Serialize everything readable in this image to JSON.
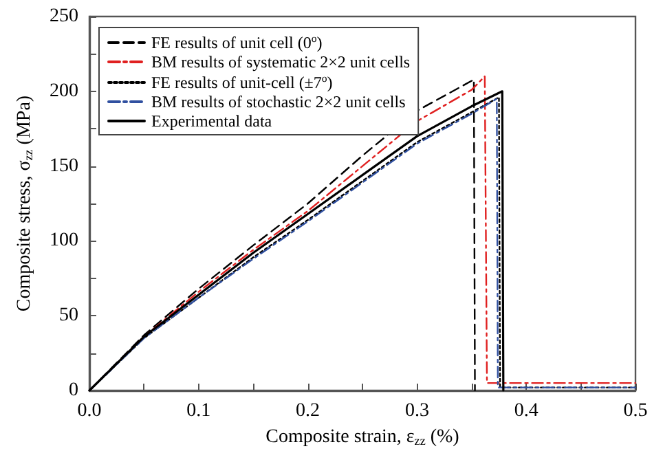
{
  "chart_data": {
    "type": "line",
    "xlabel": "Composite strain, ε$_{zz}$ (%)",
    "ylabel": "Composite stress, σ$_{zz}$ (MPa)",
    "xlim": [
      0,
      0.5
    ],
    "xticks": [
      {
        "value": 0,
        "label": "0.0"
      },
      0.1,
      0.2,
      0.3,
      0.4,
      0.5
    ],
    "ylim": [
      0,
      250
    ],
    "yticks": [
      0,
      50,
      100,
      150,
      200,
      250
    ],
    "grid": false,
    "legend": "top left",
    "marker": "none",
    "series": [
      {
        "name": "FE results of unit cell (0$^{o}$)",
        "color": "#000000",
        "line_style": "dashed",
        "x": [
          0,
          0.05,
          0.1,
          0.15,
          0.2,
          0.25,
          0.3,
          0.35,
          0.352,
          0.353
        ],
        "values": [
          0,
          37,
          68,
          97,
          125,
          157,
          187,
          207,
          208,
          0
        ]
      },
      {
        "name": "BM results of systematic 2×2 unit cells",
        "color": "#e02020",
        "line_style": "dashdot",
        "x": [
          0,
          0.05,
          0.1,
          0.15,
          0.2,
          0.25,
          0.3,
          0.35,
          0.362,
          0.364,
          0.5
        ],
        "values": [
          0,
          36,
          66,
          94,
          120,
          150,
          180,
          201,
          210,
          5,
          5
        ]
      },
      {
        "name": "FE results of unit-cell (±7$^{o}$)",
        "color": "#000000",
        "line_style": "dotted",
        "x": [
          0,
          0.05,
          0.1,
          0.15,
          0.2,
          0.25,
          0.3,
          0.35,
          0.375,
          0.376,
          0.5
        ],
        "values": [
          0,
          35,
          62,
          89,
          114,
          140,
          166,
          186,
          196,
          2,
          2
        ]
      },
      {
        "name": "BM results of stochastic 2×2 unit cells",
        "color": "#3050a0",
        "line_style": "dashdot",
        "x": [
          0,
          0.05,
          0.1,
          0.15,
          0.2,
          0.25,
          0.3,
          0.35,
          0.373,
          0.374,
          0.5
        ],
        "values": [
          0,
          35,
          62,
          88,
          113,
          139,
          165,
          185,
          195,
          2,
          2
        ]
      },
      {
        "name": "Experimental data",
        "color": "#000000",
        "line_style": "solid",
        "x": [
          0,
          0.05,
          0.1,
          0.15,
          0.2,
          0.25,
          0.3,
          0.35,
          0.378,
          0.379
        ],
        "values": [
          0,
          36,
          64,
          92,
          118,
          144,
          170,
          190,
          200,
          0
        ]
      }
    ]
  }
}
